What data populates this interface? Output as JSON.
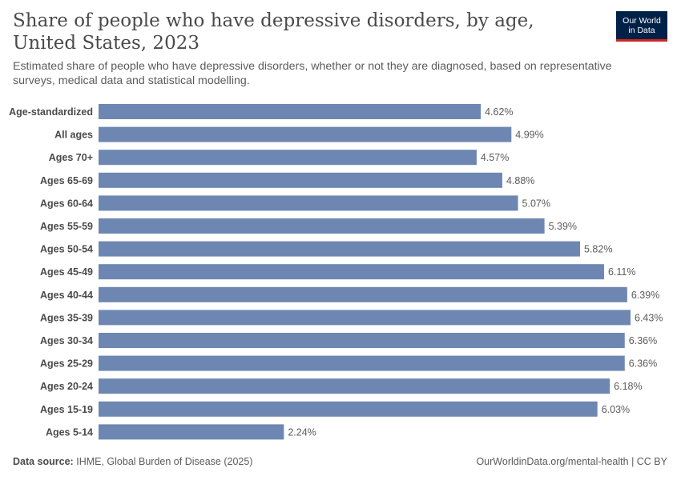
{
  "header": {
    "title": "Share of people who have depressive disorders, by age, United States, 2023",
    "subtitle": "Estimated share of people who have depressive disorders, whether or not they are diagnosed, based on representative surveys, medical data and statistical modelling."
  },
  "logo": {
    "line1": "Our World",
    "line2": "in Data"
  },
  "footer": {
    "source_label": "Data source:",
    "source_text": "IHME, Global Burden of Disease (2025)",
    "url": "OurWorldinData.org/mental-health | CC BY"
  },
  "colors": {
    "bar": "#6d87b2"
  },
  "chart_data": {
    "type": "bar",
    "orientation": "horizontal",
    "categories": [
      "Age-standardized",
      "All ages",
      "Ages 70+",
      "Ages 65-69",
      "Ages 60-64",
      "Ages 55-59",
      "Ages 50-54",
      "Ages 45-49",
      "Ages 40-44",
      "Ages 35-39",
      "Ages 30-34",
      "Ages 25-29",
      "Ages 20-24",
      "Ages 15-19",
      "Ages 5-14"
    ],
    "values": [
      4.62,
      4.99,
      4.57,
      4.88,
      5.07,
      5.39,
      5.82,
      6.11,
      6.39,
      6.43,
      6.36,
      6.36,
      6.18,
      6.03,
      2.24
    ],
    "value_labels": [
      "4.62%",
      "4.99%",
      "4.57%",
      "4.88%",
      "5.07%",
      "5.39%",
      "5.82%",
      "6.11%",
      "6.39%",
      "6.43%",
      "6.36%",
      "6.36%",
      "6.18%",
      "6.03%",
      "2.24%"
    ],
    "xlim": [
      0,
      6.43
    ],
    "grid": false
  }
}
